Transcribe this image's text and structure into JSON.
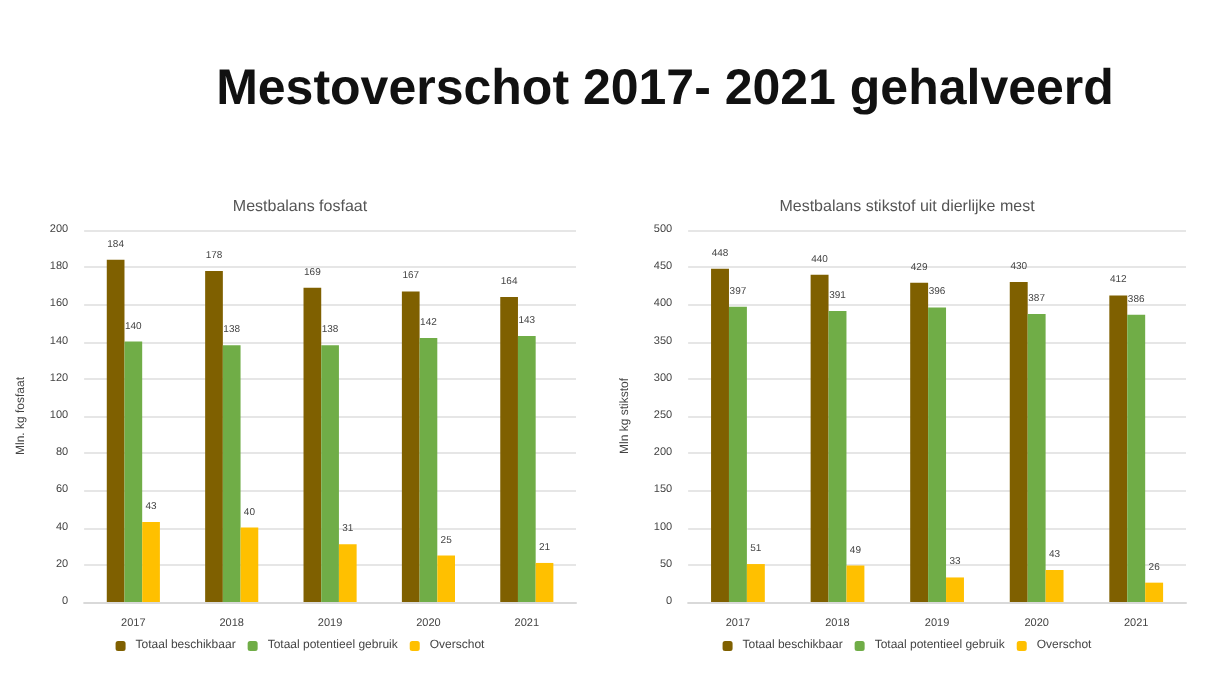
{
  "chart_data": [
    {
      "type": "bar",
      "title": "Mestbalans fosfaat",
      "ylabel": "Mln. kg fosfaat",
      "annotations": [
        "Mestoverschot 2017- 2021 gehalveerd"
      ],
      "categories": [
        "2017",
        "2018",
        "2019",
        "2020",
        "2021"
      ],
      "series": [
        {
          "name": "Totaal beschikbaar",
          "color": "#7f6000",
          "values": [
            184,
            178,
            169,
            167,
            164
          ]
        },
        {
          "name": "Totaal potentieel gebruik",
          "color": "#70ad47",
          "values": [
            140,
            138,
            138,
            142,
            143
          ]
        },
        {
          "name": "Overschot",
          "color": "#ffc000",
          "values": [
            43,
            40,
            31,
            25,
            21
          ]
        }
      ],
      "ylim": [
        0,
        200
      ],
      "yticks": [
        0,
        20,
        40,
        60,
        80,
        100,
        120,
        140,
        160,
        180,
        200
      ],
      "grid": "y",
      "legend": "bottom",
      "data_labels": true
    },
    {
      "type": "bar",
      "title": "Mestbalans stikstof uit dierlijke mest",
      "ylabel": "Mln kg stikstof",
      "categories": [
        "2017",
        "2018",
        "2019",
        "2020",
        "2021"
      ],
      "series": [
        {
          "name": "Totaal beschikbaar",
          "color": "#7f6000",
          "values": [
            448,
            440,
            429,
            430,
            412
          ]
        },
        {
          "name": "Totaal potentieel gebruik",
          "color": "#70ad47",
          "values": [
            397,
            391,
            396,
            387,
            386
          ]
        },
        {
          "name": "Overschot",
          "color": "#ffc000",
          "values": [
            51,
            49,
            33,
            43,
            26
          ]
        }
      ],
      "ylim": [
        0,
        500
      ],
      "yticks": [
        0,
        50,
        100,
        150,
        200,
        250,
        300,
        350,
        400,
        450,
        500
      ],
      "grid": "y",
      "legend": "bottom",
      "data_labels": true
    }
  ]
}
